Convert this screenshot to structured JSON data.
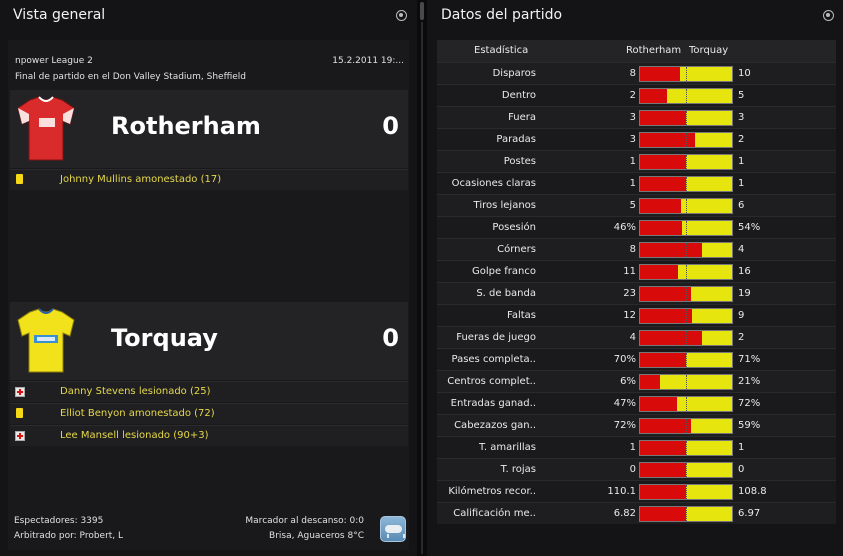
{
  "overview": {
    "title": "Vista general",
    "competition": "npower League 2",
    "date": "15.2.2011 19:...",
    "venue": "Final de partido en el Don Valley Stadium, Sheffield",
    "home": {
      "name": "Rotherham",
      "score": "0",
      "kit_color": "#d92b2b",
      "events": [
        {
          "icon": "yellow-card-icon",
          "text": "Johnny Mullins amonestado (17)"
        }
      ]
    },
    "away": {
      "name": "Torquay",
      "score": "0",
      "kit_color": "#f1e21c",
      "events": [
        {
          "icon": "injury-icon",
          "text": "Danny Stevens lesionado (25)"
        },
        {
          "icon": "yellow-card-icon",
          "text": "Elliot Benyon amonestado (72)"
        },
        {
          "icon": "injury-icon",
          "text": "Lee Mansell lesionado (90+3)"
        }
      ]
    },
    "attendance": "Espectadores: 3395",
    "referee": "Arbitrado por: Probert, L",
    "halftime": "Marcador al descanso: 0:0",
    "weather": "Brisa, Aguaceros 8°C",
    "weather_icon": "rain-cloud-icon"
  },
  "stats": {
    "title": "Datos del partido",
    "header": {
      "stat": "Estadística",
      "home": "Rotherham",
      "away": "Torquay"
    },
    "colors": {
      "home": "#d80a0a",
      "away": "#e6e60e"
    },
    "rows": [
      {
        "label": "Disparos",
        "home": "8",
        "away": "10",
        "home_share": 0.44
      },
      {
        "label": "Dentro",
        "home": "2",
        "away": "5",
        "home_share": 0.29
      },
      {
        "label": "Fuera",
        "home": "3",
        "away": "3",
        "home_share": 0.5
      },
      {
        "label": "Paradas",
        "home": "3",
        "away": "2",
        "home_share": 0.6
      },
      {
        "label": "Postes",
        "home": "1",
        "away": "1",
        "home_share": 0.5
      },
      {
        "label": "Ocasiones claras",
        "home": "1",
        "away": "1",
        "home_share": 0.5
      },
      {
        "label": "Tiros lejanos",
        "home": "5",
        "away": "6",
        "home_share": 0.45
      },
      {
        "label": "Posesión",
        "home": "46%",
        "away": "54%",
        "home_share": 0.46
      },
      {
        "label": "Córners",
        "home": "8",
        "away": "4",
        "home_share": 0.67
      },
      {
        "label": "Golpe franco",
        "home": "11",
        "away": "16",
        "home_share": 0.41
      },
      {
        "label": "S. de banda",
        "home": "23",
        "away": "19",
        "home_share": 0.55
      },
      {
        "label": "Faltas",
        "home": "12",
        "away": "9",
        "home_share": 0.57
      },
      {
        "label": "Fueras de juego",
        "home": "4",
        "away": "2",
        "home_share": 0.67
      },
      {
        "label": "Pases completa..",
        "home": "70%",
        "away": "71%",
        "home_share": 0.5
      },
      {
        "label": "Centros complet..",
        "home": "6%",
        "away": "21%",
        "home_share": 0.22
      },
      {
        "label": "Entradas ganad..",
        "home": "47%",
        "away": "72%",
        "home_share": 0.4
      },
      {
        "label": "Cabezazos gan..",
        "home": "72%",
        "away": "59%",
        "home_share": 0.55
      },
      {
        "label": "T. amarillas",
        "home": "1",
        "away": "1",
        "home_share": 0.5
      },
      {
        "label": "T. rojas",
        "home": "0",
        "away": "0",
        "home_share": 0.5
      },
      {
        "label": "Kilómetros recor..",
        "home": "110.1",
        "away": "108.8",
        "home_share": 0.5
      },
      {
        "label": "Calificación me..",
        "home": "6.82",
        "away": "6.97",
        "home_share": 0.5
      }
    ]
  }
}
